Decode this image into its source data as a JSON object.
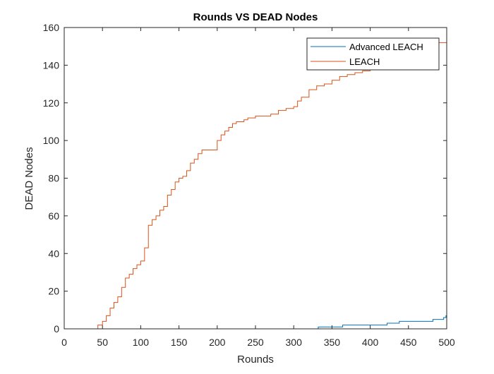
{
  "chart_data": {
    "type": "line",
    "title": "Rounds VS DEAD Nodes",
    "xlabel": "Rounds",
    "ylabel": "DEAD Nodes",
    "xlim": [
      0,
      500
    ],
    "ylim": [
      0,
      160
    ],
    "xticks": [
      0,
      50,
      100,
      150,
      200,
      250,
      300,
      350,
      400,
      450,
      500
    ],
    "yticks": [
      0,
      20,
      40,
      60,
      80,
      100,
      120,
      140,
      160
    ],
    "grid": false,
    "legend_position": "top-right",
    "series": [
      {
        "name": "Advanced LEACH",
        "color": "#0072BD",
        "points": [
          [
            0,
            0
          ],
          [
            330,
            0
          ],
          [
            332,
            1
          ],
          [
            362,
            1
          ],
          [
            364,
            2
          ],
          [
            420,
            2
          ],
          [
            422,
            3
          ],
          [
            436,
            3
          ],
          [
            438,
            4
          ],
          [
            480,
            4
          ],
          [
            482,
            5
          ],
          [
            494,
            5
          ],
          [
            496,
            6
          ],
          [
            498,
            6
          ],
          [
            499,
            7
          ],
          [
            500,
            7
          ]
        ]
      },
      {
        "name": "LEACH",
        "color": "#D95319",
        "points": [
          [
            0,
            0
          ],
          [
            40,
            0
          ],
          [
            44,
            2
          ],
          [
            50,
            4
          ],
          [
            55,
            7
          ],
          [
            60,
            11
          ],
          [
            65,
            14
          ],
          [
            70,
            17
          ],
          [
            75,
            22
          ],
          [
            80,
            27
          ],
          [
            85,
            29
          ],
          [
            90,
            32
          ],
          [
            95,
            34
          ],
          [
            100,
            36
          ],
          [
            105,
            43
          ],
          [
            110,
            55
          ],
          [
            115,
            58
          ],
          [
            120,
            60
          ],
          [
            125,
            63
          ],
          [
            130,
            65
          ],
          [
            135,
            71
          ],
          [
            140,
            74
          ],
          [
            145,
            78
          ],
          [
            150,
            80
          ],
          [
            155,
            81
          ],
          [
            160,
            84
          ],
          [
            165,
            88
          ],
          [
            170,
            90
          ],
          [
            175,
            93
          ],
          [
            180,
            95
          ],
          [
            185,
            95
          ],
          [
            190,
            95
          ],
          [
            195,
            95
          ],
          [
            200,
            100
          ],
          [
            205,
            103
          ],
          [
            210,
            105
          ],
          [
            215,
            107
          ],
          [
            220,
            109
          ],
          [
            225,
            110
          ],
          [
            230,
            110
          ],
          [
            235,
            111
          ],
          [
            240,
            112
          ],
          [
            250,
            113
          ],
          [
            260,
            113
          ],
          [
            270,
            114
          ],
          [
            280,
            116
          ],
          [
            290,
            117
          ],
          [
            300,
            118
          ],
          [
            305,
            121
          ],
          [
            310,
            123
          ],
          [
            320,
            127
          ],
          [
            330,
            129
          ],
          [
            340,
            130
          ],
          [
            350,
            132
          ],
          [
            360,
            134
          ],
          [
            370,
            135
          ],
          [
            380,
            136
          ],
          [
            390,
            137
          ],
          [
            400,
            140
          ],
          [
            410,
            143
          ],
          [
            420,
            146
          ],
          [
            430,
            148
          ],
          [
            440,
            149
          ],
          [
            450,
            150
          ],
          [
            460,
            151
          ],
          [
            470,
            152
          ],
          [
            480,
            152
          ],
          [
            490,
            152
          ],
          [
            500,
            152
          ]
        ]
      }
    ]
  }
}
